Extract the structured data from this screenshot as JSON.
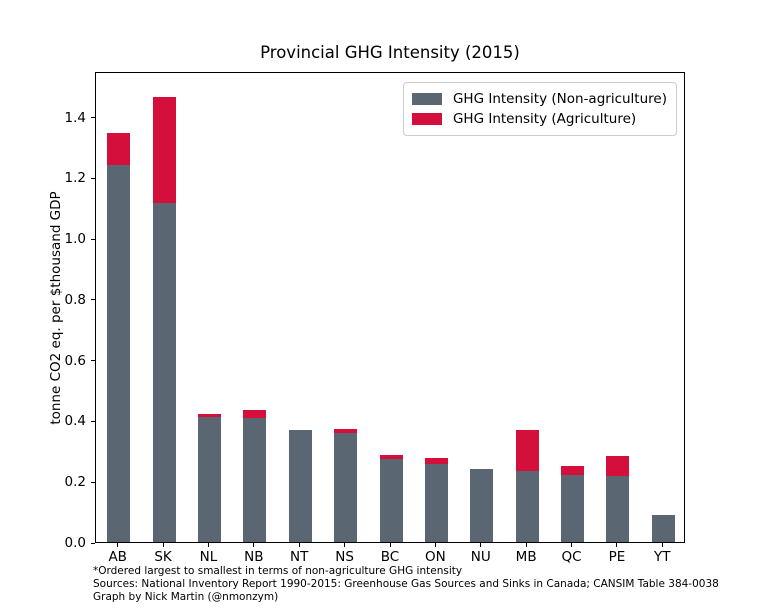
{
  "title": "Provincial GHG Intensity (2015)",
  "y_axis_label": "tonne CO2 eq. per $thousand GDP",
  "footnotes": [
    "*Ordered largest to smallest in terms of non-agriculture GHG intensity",
    "Sources: National Inventory Report 1990-2015: Greenhouse Gas Sources and Sinks in Canada; CANSIM Table 384-0038",
    "Graph by Nick Martin (@nmonzym)"
  ],
  "colors": {
    "non_agriculture": "#5a6672",
    "agriculture": "#d40f3c",
    "axis": "#000000",
    "legend_border": "#cccccc"
  },
  "chart_data": {
    "type": "bar",
    "stacked": true,
    "title": "Provincial GHG Intensity (2015)",
    "xlabel": "",
    "ylabel": "tonne CO2 eq. per $thousand GDP",
    "categories": [
      "AB",
      "SK",
      "NL",
      "NB",
      "NT",
      "NS",
      "BC",
      "ON",
      "NU",
      "MB",
      "QC",
      "PE",
      "YT"
    ],
    "series": [
      {
        "name": "GHG Intensity (Non-agriculture)",
        "color": "#5a6672",
        "values": [
          1.24,
          1.115,
          0.413,
          0.408,
          0.37,
          0.358,
          0.272,
          0.257,
          0.241,
          0.235,
          0.22,
          0.216,
          0.088
        ]
      },
      {
        "name": "GHG Intensity (Agriculture)",
        "color": "#d40f3c",
        "values": [
          0.105,
          0.35,
          0.008,
          0.026,
          0.0,
          0.015,
          0.016,
          0.021,
          0.0,
          0.132,
          0.031,
          0.067,
          0.0
        ]
      }
    ],
    "totals": [
      1.345,
      1.465,
      0.421,
      0.434,
      0.37,
      0.373,
      0.288,
      0.278,
      0.241,
      0.367,
      0.251,
      0.283,
      0.088
    ],
    "ylim": [
      0,
      1.55
    ],
    "yticks": [
      0.0,
      0.2,
      0.4,
      0.6,
      0.8,
      1.0,
      1.2,
      1.4
    ],
    "legend_position": "upper right",
    "grid": false
  }
}
